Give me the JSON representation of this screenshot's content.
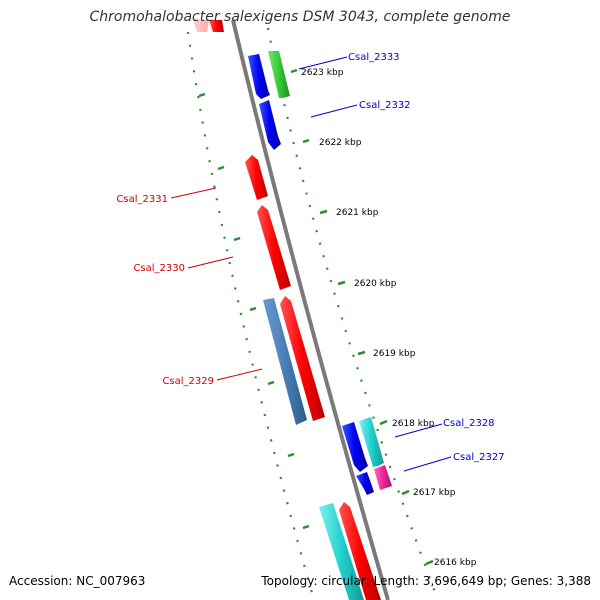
{
  "title": "Chromohalobacter salexigens DSM 3043, complete genome",
  "accession_label": "Accession: NC_007963",
  "topology_label": "Topology: circular; Length: 3,696,649 bp; Genes: 3,388",
  "colors": {
    "forward_label": "#0000cc",
    "reverse_label": "#cc0000",
    "tick": "#2e8b2e",
    "backbone": "#7a7a7a"
  },
  "kbp_labels": [
    "2623 kbp",
    "2622 kbp",
    "2621 kbp",
    "2620 kbp",
    "2619 kbp",
    "2618 kbp",
    "2617 kbp",
    "2616 kbp"
  ],
  "gene_labels": [
    {
      "text": "Csal_2333",
      "strand": "forward"
    },
    {
      "text": "Csal_2332",
      "strand": "forward"
    },
    {
      "text": "Csal_2331",
      "strand": "reverse"
    },
    {
      "text": "Csal_2330",
      "strand": "reverse"
    },
    {
      "text": "Csal_2329",
      "strand": "reverse"
    },
    {
      "text": "Csal_2328",
      "strand": "forward"
    },
    {
      "text": "Csal_2327",
      "strand": "forward"
    }
  ]
}
